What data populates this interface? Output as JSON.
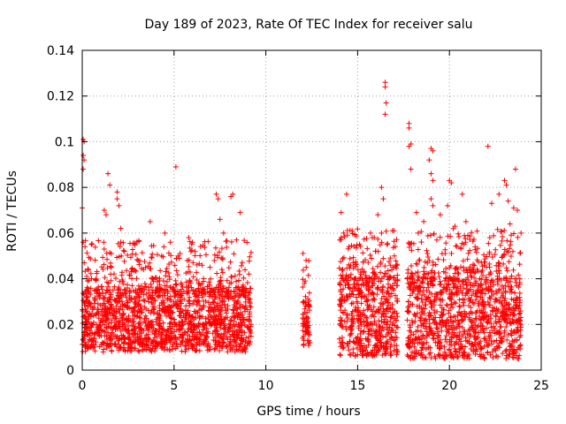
{
  "chart_data": {
    "type": "scatter",
    "title": "Day 189 of 2023, Rate Of TEC Index for receiver salu",
    "xlabel": "GPS time / hours",
    "ylabel": "ROTI / TECUs",
    "xlim": [
      0,
      25
    ],
    "ylim": [
      0,
      0.14
    ],
    "xticks": [
      0,
      5,
      10,
      15,
      20,
      25
    ],
    "xtick_labels": [
      "0",
      "5",
      "10",
      "15",
      "20",
      "25"
    ],
    "yticks": [
      0,
      0.02,
      0.04,
      0.06,
      0.08,
      0.1,
      0.12,
      0.14
    ],
    "ytick_labels": [
      "0",
      "0.02",
      "0.04",
      "0.06",
      "0.08",
      "0.1",
      "0.12",
      "0.14"
    ],
    "grid": true,
    "marker": "plus",
    "color": "#ff0000",
    "series": [
      {
        "name": "ROTI",
        "data_segments": [
          {
            "start": 0.0,
            "end": 9.2,
            "typical_min": 0.008,
            "typical_max": 0.035
          },
          {
            "start": 12.0,
            "end": 12.4,
            "typical_min": 0.01,
            "typical_max": 0.03
          },
          {
            "start": 14.0,
            "end": 17.2,
            "typical_min": 0.006,
            "typical_max": 0.04
          },
          {
            "start": 17.7,
            "end": 23.9,
            "typical_min": 0.005,
            "typical_max": 0.04
          }
        ],
        "outliers": [
          [
            0.05,
            0.101
          ],
          [
            0.1,
            0.1
          ],
          [
            0.05,
            0.094
          ],
          [
            0.1,
            0.092
          ],
          [
            0.05,
            0.088
          ],
          [
            0.0,
            0.071
          ],
          [
            0.05,
            0.056
          ],
          [
            0.5,
            0.055
          ],
          [
            1.2,
            0.07
          ],
          [
            1.3,
            0.068
          ],
          [
            1.4,
            0.086
          ],
          [
            1.5,
            0.081
          ],
          [
            1.9,
            0.078
          ],
          [
            1.9,
            0.075
          ],
          [
            2.0,
            0.072
          ],
          [
            2.3,
            0.052
          ],
          [
            2.1,
            0.062
          ],
          [
            3.7,
            0.065
          ],
          [
            4.5,
            0.06
          ],
          [
            5.1,
            0.089
          ],
          [
            4.8,
            0.056
          ],
          [
            5.8,
            0.058
          ],
          [
            6.0,
            0.056
          ],
          [
            7.3,
            0.077
          ],
          [
            7.4,
            0.075
          ],
          [
            7.5,
            0.066
          ],
          [
            8.1,
            0.076
          ],
          [
            8.2,
            0.077
          ],
          [
            8.6,
            0.069
          ],
          [
            7.7,
            0.06
          ],
          [
            8.4,
            0.057
          ],
          [
            12.2,
            0.045
          ],
          [
            12.1,
            0.038
          ],
          [
            14.1,
            0.069
          ],
          [
            14.4,
            0.077
          ],
          [
            14.7,
            0.061
          ],
          [
            15.1,
            0.055
          ],
          [
            15.7,
            0.06
          ],
          [
            15.8,
            0.058
          ],
          [
            16.1,
            0.068
          ],
          [
            16.3,
            0.08
          ],
          [
            16.4,
            0.075
          ],
          [
            16.5,
            0.126
          ],
          [
            16.5,
            0.124
          ],
          [
            16.55,
            0.117
          ],
          [
            16.5,
            0.112
          ],
          [
            16.3,
            0.06
          ],
          [
            16.6,
            0.055
          ],
          [
            17.0,
            0.05
          ],
          [
            17.8,
            0.108
          ],
          [
            17.8,
            0.106
          ],
          [
            17.9,
            0.099
          ],
          [
            17.8,
            0.098
          ],
          [
            17.9,
            0.088
          ],
          [
            18.2,
            0.069
          ],
          [
            18.3,
            0.06
          ],
          [
            18.6,
            0.065
          ],
          [
            19.0,
            0.097
          ],
          [
            19.1,
            0.096
          ],
          [
            18.9,
            0.092
          ],
          [
            19.0,
            0.086
          ],
          [
            19.1,
            0.083
          ],
          [
            19.0,
            0.075
          ],
          [
            19.1,
            0.072
          ],
          [
            19.5,
            0.068
          ],
          [
            20.0,
            0.083
          ],
          [
            20.1,
            0.082
          ],
          [
            19.9,
            0.072
          ],
          [
            20.3,
            0.063
          ],
          [
            20.7,
            0.077
          ],
          [
            20.9,
            0.065
          ],
          [
            21.4,
            0.054
          ],
          [
            21.0,
            0.059
          ],
          [
            22.1,
            0.098
          ],
          [
            22.3,
            0.073
          ],
          [
            22.2,
            0.058
          ],
          [
            22.7,
            0.077
          ],
          [
            23.0,
            0.083
          ],
          [
            23.1,
            0.081
          ],
          [
            23.2,
            0.074
          ],
          [
            23.5,
            0.071
          ],
          [
            23.6,
            0.088
          ],
          [
            23.3,
            0.064
          ],
          [
            23.7,
            0.07
          ],
          [
            23.9,
            0.06
          ]
        ]
      }
    ]
  }
}
